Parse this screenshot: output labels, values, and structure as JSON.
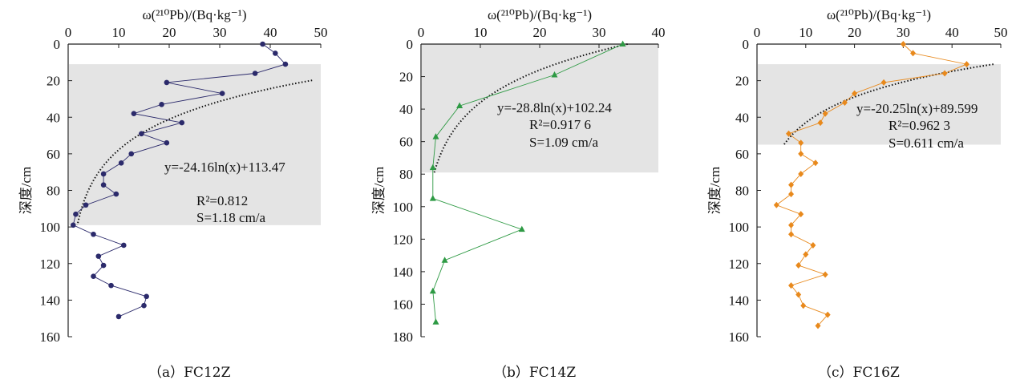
{
  "chart_data": [
    {
      "type": "line",
      "caption": "（a）FC12Z",
      "xlabel": "ω(²¹⁰Pb)/(Bq·kg⁻¹)",
      "ylabel": "深度/cm",
      "xlim": [
        0,
        50
      ],
      "ylim": [
        0,
        160
      ],
      "y_inverted": true,
      "x_ticks": [
        0,
        10,
        20,
        30,
        40,
        50
      ],
      "y_ticks": [
        0,
        20,
        40,
        60,
        80,
        100,
        120,
        140,
        160
      ],
      "marker": "circle",
      "color": "#2b2a6b",
      "shaded_depth": [
        11,
        99
      ],
      "fit": {
        "a": -24.16,
        "b": 113.47
      },
      "annotation": {
        "equation": "y=-24.16ln(x)+113.47",
        "r2": "R²=0.812",
        "rate": "S=1.18 cm/a"
      },
      "series": [
        {
          "x": [
            38.5,
            41,
            43,
            37,
            19.5,
            30.5,
            18.5,
            13,
            22.5,
            14.5,
            19.5,
            12.5,
            10.5,
            7,
            7,
            9.5,
            3.5,
            1.5,
            1,
            5,
            11,
            6,
            7,
            5,
            8.5,
            15.5,
            15,
            10
          ],
          "y": [
            0,
            5,
            11,
            16,
            21,
            27,
            33,
            38,
            43,
            49,
            54,
            60,
            65,
            71,
            77,
            82,
            88,
            93,
            99,
            104,
            110,
            116,
            121,
            127,
            132,
            138,
            143,
            149
          ]
        }
      ]
    },
    {
      "type": "line",
      "caption": "（b）FC14Z",
      "xlabel": "ω(²¹⁰Pb)/(Bq·kg⁻¹)",
      "ylabel": "深度/cm",
      "xlim": [
        0,
        40
      ],
      "ylim": [
        0,
        180
      ],
      "y_inverted": true,
      "x_ticks": [
        0,
        10,
        20,
        30,
        40
      ],
      "y_ticks": [
        0,
        20,
        40,
        60,
        80,
        100,
        120,
        140,
        160,
        180
      ],
      "marker": "triangle",
      "color": "#2e9a44",
      "shaded_depth": [
        0,
        79
      ],
      "fit": {
        "a": -28.8,
        "b": 102.24
      },
      "annotation": {
        "equation": "y=-28.8ln(x)+102.24",
        "r2": "R²=0.917 6",
        "rate": "S=1.09 cm/a"
      },
      "series": [
        {
          "x": [
            34,
            22.5,
            6.5,
            2.5,
            2,
            2,
            17,
            4,
            2,
            2.5
          ],
          "y": [
            0,
            19,
            38,
            57,
            76,
            95,
            114,
            133,
            152,
            171
          ]
        }
      ]
    },
    {
      "type": "line",
      "caption": "（c）FC16Z",
      "xlabel": "ω(²¹⁰Pb)/(Bq·kg⁻¹)",
      "ylabel": "深度/cm",
      "xlim": [
        0,
        50
      ],
      "ylim": [
        0,
        160
      ],
      "y_inverted": true,
      "x_ticks": [
        0,
        10,
        20,
        30,
        40,
        50
      ],
      "y_ticks": [
        0,
        20,
        40,
        60,
        80,
        100,
        120,
        140,
        160
      ],
      "marker": "diamond",
      "color": "#e8891c",
      "shaded_depth": [
        11,
        55
      ],
      "fit": {
        "a": -20.25,
        "b": 89.599
      },
      "annotation": {
        "equation": "y=-20.25ln(x)+89.599",
        "r2": "R²=0.962 3",
        "rate": "S=0.611 cm/a"
      },
      "series": [
        {
          "x": [
            30,
            32,
            43,
            38.5,
            26,
            20,
            18,
            14,
            13,
            6.5,
            9,
            9,
            12,
            9,
            7,
            7,
            4,
            9,
            7,
            7,
            11.5,
            10,
            8.5,
            14,
            7,
            8.5,
            9.5,
            14.5,
            12.5
          ],
          "y": [
            0,
            5,
            11,
            16,
            21,
            27,
            32,
            38,
            43,
            49,
            54,
            60,
            65,
            71,
            77,
            82,
            88,
            93,
            99,
            104,
            110,
            115,
            121,
            126,
            132,
            137,
            143,
            148,
            154
          ]
        }
      ]
    }
  ]
}
